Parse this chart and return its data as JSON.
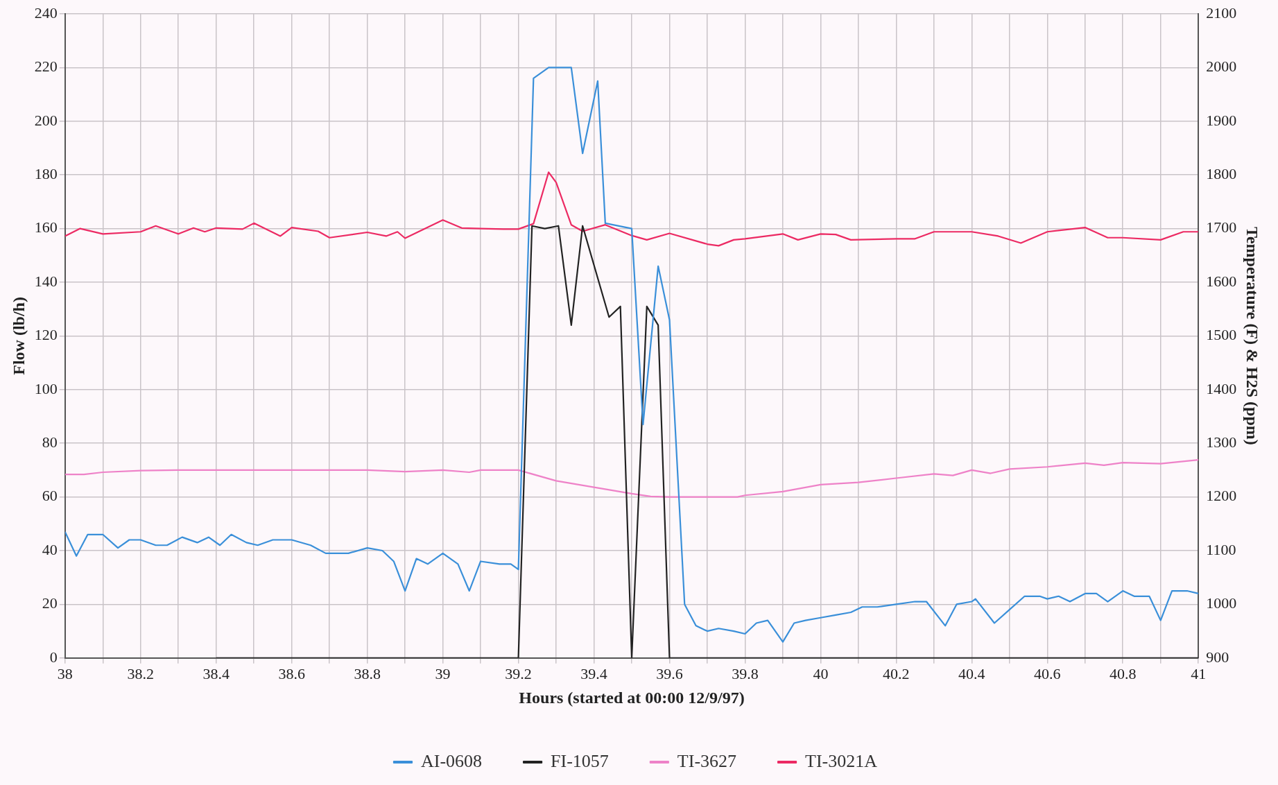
{
  "chart_data": {
    "type": "line",
    "xlabel": "Hours (started at 00:00 12/9/97)",
    "ylabel": "Flow (lb/h)",
    "y2label": "Temperature (F) & H2S (ppm)",
    "xlim": [
      38,
      41
    ],
    "xticks": [
      38,
      {
        "value": 38.1,
        "label": null
      },
      38.2,
      {
        "value": 38.3,
        "label": null
      },
      38.4,
      {
        "value": 38.5,
        "label": null
      },
      38.6,
      {
        "value": 38.7,
        "label": null
      },
      38.8,
      {
        "value": 38.9,
        "label": null
      },
      39,
      {
        "value": 39.1,
        "label": null
      },
      39.2,
      {
        "value": 39.3,
        "label": null
      },
      39.4,
      {
        "value": 39.5,
        "label": null
      },
      39.6,
      {
        "value": 39.7,
        "label": null
      },
      39.8,
      {
        "value": 39.9,
        "label": null
      },
      40,
      {
        "value": 40.1,
        "label": null
      },
      40.2,
      {
        "value": 40.3,
        "label": null
      },
      40.4,
      {
        "value": 40.5,
        "label": null
      },
      40.6,
      {
        "value": 40.7,
        "label": null
      },
      40.8,
      {
        "value": 40.9,
        "label": null
      },
      41
    ],
    "ylim": [
      0,
      240
    ],
    "yticks": [
      0,
      20,
      40,
      60,
      80,
      100,
      120,
      140,
      160,
      180,
      200,
      220,
      240
    ],
    "y2lim": [
      900,
      2100
    ],
    "y2ticks": [
      900,
      1000,
      1100,
      1200,
      1300,
      1400,
      1500,
      1600,
      1700,
      1800,
      1900,
      2000,
      2100
    ],
    "grid": true,
    "legend": "bottom",
    "marker": "none",
    "line_style": "solid",
    "series": [
      {
        "name": "AI-0608",
        "color": "#3a8fd9",
        "x": [
          38,
          38.03,
          38.06,
          38.1,
          38.14,
          38.17,
          38.2,
          38.24,
          38.27,
          38.31,
          38.35,
          38.38,
          38.41,
          38.44,
          38.48,
          38.51,
          38.55,
          38.6,
          38.65,
          38.69,
          38.75,
          38.8,
          38.84,
          38.87,
          38.9,
          38.93,
          38.96,
          39,
          39.04,
          39.07,
          39.1,
          39.15,
          39.18,
          39.2,
          39.24,
          39.28,
          39.34,
          39.37,
          39.41,
          39.43,
          39.5,
          39.53,
          39.57,
          39.6,
          39.64,
          39.67,
          39.7,
          39.73,
          39.77,
          39.8,
          39.83,
          39.86,
          39.9,
          39.93,
          39.96,
          40,
          40.04,
          40.08,
          40.11,
          40.15,
          40.2,
          40.25,
          40.28,
          40.33,
          40.36,
          40.4,
          40.41,
          40.46,
          40.5,
          40.54,
          40.58,
          40.6,
          40.63,
          40.66,
          40.7,
          40.73,
          40.76,
          40.8,
          40.83,
          40.87,
          40.9,
          40.93,
          40.97,
          41
        ],
        "values": [
          47,
          38,
          46,
          46,
          41,
          44,
          44,
          42,
          42,
          45,
          43,
          45,
          42,
          46,
          43,
          42,
          44,
          44,
          42,
          39,
          39,
          41,
          40,
          36,
          25,
          37,
          35,
          39,
          35,
          25,
          36,
          35,
          35,
          33,
          216,
          220,
          220,
          188,
          215,
          162,
          160,
          87,
          146,
          126,
          20,
          12,
          10,
          11,
          10,
          9,
          13,
          14,
          6,
          13,
          14,
          15,
          16,
          17,
          19,
          19,
          20,
          21,
          21,
          12,
          20,
          21,
          22,
          13,
          18,
          23,
          23,
          22,
          23,
          21,
          24,
          24,
          21,
          25,
          23,
          23,
          14,
          25,
          25,
          24
        ]
      },
      {
        "name": "FI-1057",
        "color": "#222222",
        "x": [
          38.4,
          39.2,
          39.236,
          39.27,
          39.306,
          39.34,
          39.37,
          39.44,
          39.47,
          39.5,
          39.54,
          39.57,
          39.6,
          41
        ],
        "values": [
          0,
          0,
          161,
          160,
          161,
          124,
          161,
          127,
          131,
          0,
          131,
          124,
          0,
          0
        ]
      },
      {
        "name": "TI-3627",
        "color": "#ee82c8",
        "axis": "y2",
        "x": [
          38,
          38.05,
          38.1,
          38.2,
          38.3,
          38.5,
          38.7,
          38.8,
          38.9,
          39,
          39.07,
          39.1,
          39.2,
          39.3,
          39.4,
          39.5,
          39.55,
          39.6,
          39.7,
          39.78,
          39.8,
          39.9,
          40,
          40.1,
          40.2,
          40.3,
          40.35,
          40.4,
          40.45,
          40.5,
          40.6,
          40.7,
          40.75,
          40.8,
          40.9,
          41
        ],
        "values": [
          1242,
          1242,
          1246,
          1249,
          1250,
          1250,
          1250,
          1250,
          1247,
          1250,
          1246,
          1250,
          1250,
          1230,
          1218,
          1206,
          1201,
          1200,
          1200,
          1200,
          1203,
          1210,
          1223,
          1227,
          1235,
          1243,
          1240,
          1250,
          1244,
          1252,
          1256,
          1263,
          1259,
          1264,
          1262,
          1269
        ]
      },
      {
        "name": "TI-3021A",
        "color": "#ec2a63",
        "axis": "y2",
        "x": [
          38,
          38.04,
          38.1,
          38.2,
          38.24,
          38.3,
          38.34,
          38.37,
          38.4,
          38.47,
          38.5,
          38.57,
          38.6,
          38.67,
          38.7,
          38.8,
          38.85,
          38.88,
          38.9,
          39,
          39.05,
          39.1,
          39.16,
          39.2,
          39.24,
          39.28,
          39.3,
          39.34,
          39.37,
          39.43,
          39.5,
          39.54,
          39.6,
          39.7,
          39.73,
          39.77,
          39.8,
          39.9,
          39.94,
          40,
          40.04,
          40.08,
          40.2,
          40.25,
          40.3,
          40.4,
          40.47,
          40.53,
          40.6,
          40.7,
          40.76,
          40.8,
          40.9,
          40.96,
          41
        ],
        "values": [
          1686,
          1700,
          1690,
          1694,
          1705,
          1690,
          1701,
          1694,
          1701,
          1699,
          1710,
          1686,
          1702,
          1695,
          1683,
          1693,
          1686,
          1694,
          1682,
          1716,
          1701,
          1700,
          1699,
          1699,
          1709,
          1805,
          1786,
          1707,
          1695,
          1707,
          1687,
          1679,
          1691,
          1671,
          1668,
          1679,
          1681,
          1690,
          1679,
          1690,
          1689,
          1679,
          1681,
          1681,
          1694,
          1694,
          1686,
          1673,
          1694,
          1702,
          1683,
          1683,
          1679,
          1694,
          1694
        ]
      }
    ]
  }
}
